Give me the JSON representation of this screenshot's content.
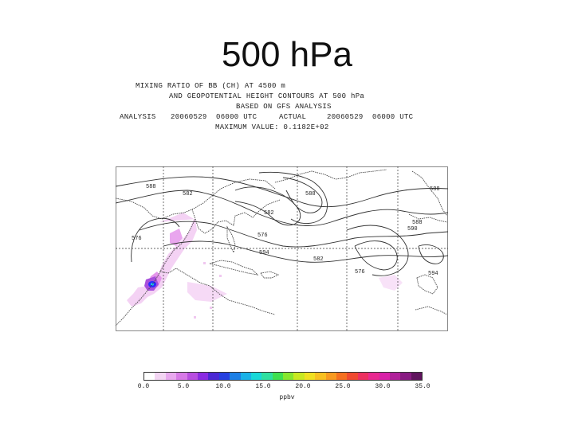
{
  "slide": {
    "title": "500 hPa"
  },
  "header": {
    "line1": "MIXING RATIO OF BB (CH) AT 4500 m",
    "line2": "AND GEOPOTENTIAL HEIGHT CONTOURS AT 500 hPa",
    "line3": "BASED ON GFS ANALYSIS",
    "analysis_label": "ANALYSIS",
    "analysis_value": "20060529  06000 UTC",
    "actual_label": "ACTUAL",
    "actual_value": "20060529  06000 UTC",
    "max_value": "MAXIMUM VALUE: 0.1182E+02"
  },
  "map": {
    "contour_labels": [
      "588",
      "582",
      "588",
      "582",
      "576",
      "594",
      "582",
      "576",
      "588",
      "590",
      "588",
      "576",
      "594"
    ],
    "colors": {
      "coast": "#444444",
      "grid": "#333333",
      "contour": "#333333",
      "plume_light": "#f2c8f2",
      "plume_mid": "#e08ae8",
      "plume_core": "#2a2aff"
    }
  },
  "colorbar": {
    "colors": [
      "#ffffff",
      "#f3d5f3",
      "#e8a8ee",
      "#d77ae6",
      "#b84ee0",
      "#8a2be2",
      "#4b28d4",
      "#2540e0",
      "#1c7fe6",
      "#19b2e8",
      "#18d8d8",
      "#2ee0a0",
      "#3ee050",
      "#86e62e",
      "#c8e820",
      "#f0e020",
      "#f8c020",
      "#f89a20",
      "#f57020",
      "#f04a30",
      "#ec3060",
      "#e82890",
      "#d820a8",
      "#b0209a",
      "#881a82",
      "#60145e"
    ],
    "ticks": [
      "0.0",
      "5.0",
      "10.0",
      "15.0",
      "20.0",
      "25.0",
      "30.0",
      "35.0"
    ],
    "units": "ppbv"
  }
}
